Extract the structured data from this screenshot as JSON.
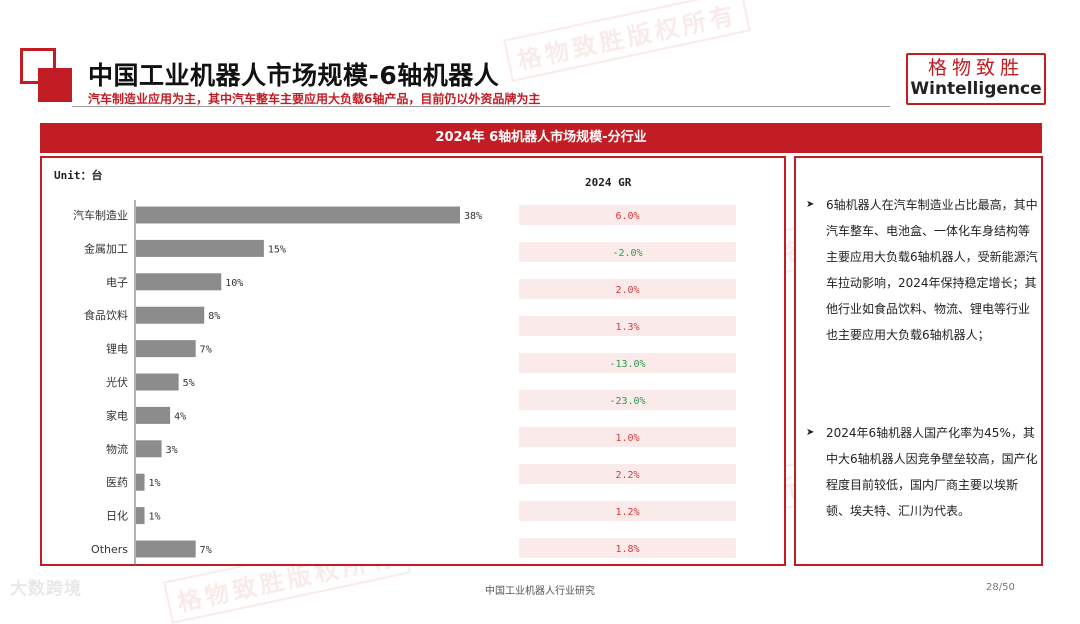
{
  "header": {
    "title": "中国工业机器人市场规模-6轴机器人",
    "subtitle": "汽车制造业应用为主，其中汽车整车主要应用大负载6轴产品，目前仍以外资品牌为主",
    "brand_cn": "格物致胜",
    "brand_en": "Wintelligence",
    "accent_color": "#c21d24"
  },
  "banner": {
    "title": "2024年 6轴机器人市场规模-分行业"
  },
  "chart_data": {
    "type": "bar",
    "orientation": "horizontal",
    "unit_label": "Unit：台",
    "categories": [
      "汽车制造业",
      "金属加工",
      "电子",
      "食品饮料",
      "锂电",
      "光伏",
      "家电",
      "物流",
      "医药",
      "日化",
      "Others"
    ],
    "values": [
      38,
      15,
      10,
      8,
      7,
      5,
      4,
      3,
      1,
      1,
      7
    ],
    "value_labels": [
      "38%",
      "15%",
      "10%",
      "8%",
      "7%",
      "5%",
      "4%",
      "3%",
      "1%",
      "1%",
      "7%"
    ],
    "bar_color": "#8c8c8c",
    "gr_header": "2024 GR",
    "gr_values": [
      "6.0%",
      "-2.0%",
      "2.0%",
      "1.3%",
      "-13.0%",
      "-23.0%",
      "1.0%",
      "2.2%",
      "1.2%",
      "1.8%"
    ],
    "gr_positive_color": "#d83a3a",
    "gr_negative_color": "#2e9a4f",
    "gr_cell_color": "#fbeaea"
  },
  "insights": {
    "bullet_1": "6轴机器人在汽车制造业占比最高，其中汽车整车、电池盒、一体化车身结构等主要应用大负载6轴机器人，受新能源汽车拉动影响，2024年保持稳定增长；其他行业如食品饮料、物流、锂电等行业也主要应用大负载6轴机器人；",
    "bullet_2": "2024年6轴机器人国产化率为45%，其中大6轴机器人因竞争壁垒较高，国产化程度目前较低，国内厂商主要以埃斯顿、埃夫特、汇川为代表。"
  },
  "footer": {
    "center_text": "中国工业机器人行业研究",
    "page": "28/50",
    "source_logo": "大数跨境"
  },
  "watermark": {
    "text": "格物致胜版权所有"
  }
}
